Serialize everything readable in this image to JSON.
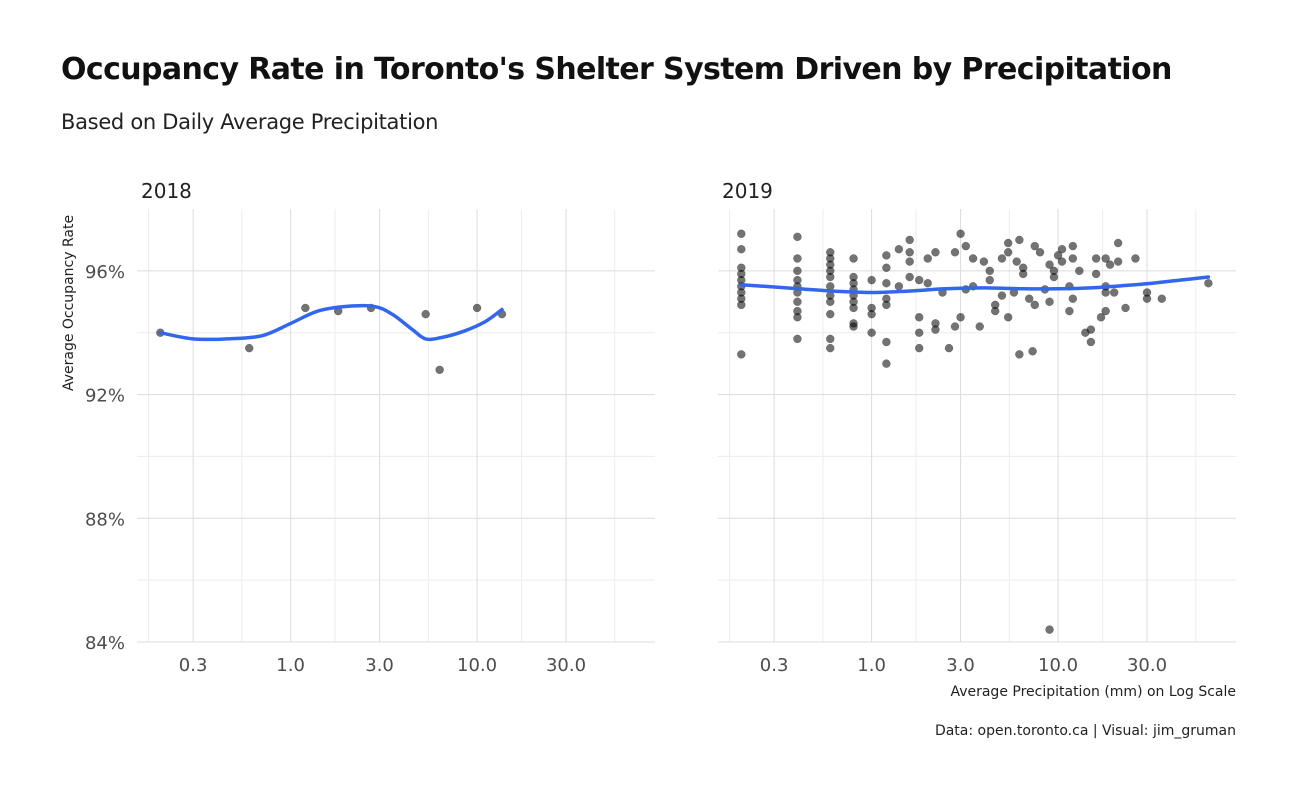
{
  "title": "Occupancy Rate in Toronto's Shelter System Driven by Precipitation",
  "subtitle": "Based on Daily Average Precipitation",
  "caption": "Data: open.toronto.ca | Visual: jim_gruman",
  "colors": {
    "points": "#000000",
    "smooth": "#3366ee",
    "grid": "#dcdcdc"
  },
  "chart_data": [
    {
      "type": "scatter",
      "facet": "2018",
      "xlabel": "",
      "ylabel": "Average Occupancy Rate",
      "x_scale": "log10",
      "xlim": [
        0.15,
        90
      ],
      "ylim": [
        84,
        98
      ],
      "x_ticks": [
        0.3,
        1.0,
        3.0,
        10.0,
        30.0
      ],
      "x_tick_labels": [
        "0.3",
        "1.0",
        "3.0",
        "10.0",
        "30.0"
      ],
      "y_ticks": [
        84,
        88,
        92,
        96
      ],
      "y_tick_labels": [
        "84%",
        "88%",
        "92%",
        "96%"
      ],
      "grid": true,
      "points": [
        [
          0.2,
          94.0
        ],
        [
          0.6,
          93.5
        ],
        [
          1.2,
          94.8
        ],
        [
          1.8,
          94.7
        ],
        [
          2.7,
          94.8
        ],
        [
          5.3,
          94.6
        ],
        [
          6.3,
          92.8
        ],
        [
          10.0,
          94.8
        ],
        [
          13.6,
          94.6
        ]
      ],
      "smooth": [
        [
          0.2,
          94.0
        ],
        [
          0.3,
          93.8
        ],
        [
          0.45,
          93.8
        ],
        [
          0.7,
          93.9
        ],
        [
          1.0,
          94.3
        ],
        [
          1.4,
          94.7
        ],
        [
          2.0,
          94.85
        ],
        [
          2.8,
          94.85
        ],
        [
          3.5,
          94.6
        ],
        [
          4.5,
          94.1
        ],
        [
          5.3,
          93.8
        ],
        [
          6.5,
          93.85
        ],
        [
          8.5,
          94.05
        ],
        [
          11.0,
          94.35
        ],
        [
          13.6,
          94.75
        ]
      ]
    },
    {
      "type": "scatter",
      "facet": "2019",
      "xlabel": "Average Precipitation (mm) on Log Scale",
      "ylabel": "",
      "x_scale": "log10",
      "xlim": [
        0.15,
        90
      ],
      "ylim": [
        84,
        98
      ],
      "x_ticks": [
        0.3,
        1.0,
        3.0,
        10.0,
        30.0
      ],
      "x_tick_labels": [
        "0.3",
        "1.0",
        "3.0",
        "10.0",
        "30.0"
      ],
      "y_ticks": [
        84,
        88,
        92,
        96
      ],
      "y_tick_labels": [
        "84%",
        "88%",
        "92%",
        "96%"
      ],
      "grid": true,
      "points": [
        [
          0.2,
          97.2
        ],
        [
          0.2,
          96.7
        ],
        [
          0.2,
          96.1
        ],
        [
          0.2,
          95.9
        ],
        [
          0.2,
          95.7
        ],
        [
          0.2,
          95.5
        ],
        [
          0.2,
          95.3
        ],
        [
          0.2,
          95.1
        ],
        [
          0.2,
          94.9
        ],
        [
          0.2,
          93.3
        ],
        [
          0.4,
          97.1
        ],
        [
          0.4,
          96.4
        ],
        [
          0.4,
          96.0
        ],
        [
          0.4,
          95.7
        ],
        [
          0.4,
          95.5
        ],
        [
          0.4,
          95.3
        ],
        [
          0.4,
          95.0
        ],
        [
          0.4,
          94.7
        ],
        [
          0.4,
          94.5
        ],
        [
          0.4,
          93.8
        ],
        [
          0.6,
          96.6
        ],
        [
          0.6,
          96.4
        ],
        [
          0.6,
          96.2
        ],
        [
          0.6,
          96.0
        ],
        [
          0.6,
          95.8
        ],
        [
          0.6,
          95.5
        ],
        [
          0.6,
          95.2
        ],
        [
          0.6,
          95.0
        ],
        [
          0.6,
          94.6
        ],
        [
          0.6,
          93.8
        ],
        [
          0.6,
          93.5
        ],
        [
          0.8,
          96.4
        ],
        [
          0.8,
          95.8
        ],
        [
          0.8,
          95.6
        ],
        [
          0.8,
          95.4
        ],
        [
          0.8,
          95.2
        ],
        [
          0.8,
          95.0
        ],
        [
          0.8,
          94.8
        ],
        [
          0.8,
          94.3
        ],
        [
          0.8,
          94.2
        ],
        [
          1.0,
          95.7
        ],
        [
          1.0,
          94.8
        ],
        [
          1.0,
          94.6
        ],
        [
          1.0,
          94.0
        ],
        [
          1.2,
          96.5
        ],
        [
          1.2,
          96.1
        ],
        [
          1.2,
          95.6
        ],
        [
          1.2,
          95.1
        ],
        [
          1.2,
          94.9
        ],
        [
          1.2,
          93.7
        ],
        [
          1.2,
          93.0
        ],
        [
          1.4,
          96.7
        ],
        [
          1.4,
          95.5
        ],
        [
          1.6,
          97.0
        ],
        [
          1.6,
          96.6
        ],
        [
          1.6,
          96.3
        ],
        [
          1.6,
          95.8
        ],
        [
          1.8,
          95.7
        ],
        [
          1.8,
          94.5
        ],
        [
          1.8,
          94.0
        ],
        [
          1.8,
          93.5
        ],
        [
          2.0,
          96.4
        ],
        [
          2.0,
          95.6
        ],
        [
          2.2,
          96.6
        ],
        [
          2.2,
          94.3
        ],
        [
          2.2,
          94.1
        ],
        [
          2.4,
          95.3
        ],
        [
          2.6,
          93.5
        ],
        [
          2.8,
          96.6
        ],
        [
          2.8,
          94.2
        ],
        [
          3.0,
          97.2
        ],
        [
          3.0,
          94.5
        ],
        [
          3.2,
          96.8
        ],
        [
          3.2,
          95.4
        ],
        [
          3.5,
          96.4
        ],
        [
          3.5,
          95.5
        ],
        [
          3.8,
          94.2
        ],
        [
          4.0,
          96.3
        ],
        [
          4.3,
          96.0
        ],
        [
          4.3,
          95.7
        ],
        [
          4.6,
          94.9
        ],
        [
          4.6,
          94.7
        ],
        [
          5.0,
          96.4
        ],
        [
          5.0,
          95.2
        ],
        [
          5.4,
          96.9
        ],
        [
          5.4,
          96.6
        ],
        [
          5.4,
          94.5
        ],
        [
          5.8,
          95.3
        ],
        [
          6.0,
          96.3
        ],
        [
          6.2,
          97.0
        ],
        [
          6.2,
          93.3
        ],
        [
          6.5,
          96.1
        ],
        [
          6.5,
          95.9
        ],
        [
          7.0,
          95.1
        ],
        [
          7.3,
          93.4
        ],
        [
          7.5,
          96.8
        ],
        [
          7.5,
          94.9
        ],
        [
          8.0,
          96.6
        ],
        [
          8.5,
          95.4
        ],
        [
          9.0,
          96.2
        ],
        [
          9.0,
          95.0
        ],
        [
          9.0,
          84.4
        ],
        [
          9.5,
          96.0
        ],
        [
          9.5,
          95.8
        ],
        [
          10.0,
          96.5
        ],
        [
          10.5,
          96.7
        ],
        [
          10.5,
          96.3
        ],
        [
          11.5,
          95.5
        ],
        [
          11.5,
          94.7
        ],
        [
          12.0,
          96.8
        ],
        [
          12.0,
          96.4
        ],
        [
          12.0,
          95.1
        ],
        [
          13.0,
          96.0
        ],
        [
          14.0,
          94.0
        ],
        [
          15.0,
          93.7
        ],
        [
          15.0,
          94.1
        ],
        [
          16.0,
          96.4
        ],
        [
          16.0,
          95.9
        ],
        [
          17.0,
          94.5
        ],
        [
          18.0,
          96.4
        ],
        [
          18.0,
          94.7
        ],
        [
          18.0,
          95.5
        ],
        [
          18.0,
          95.3
        ],
        [
          19.0,
          96.2
        ],
        [
          20.0,
          95.3
        ],
        [
          21.0,
          96.9
        ],
        [
          21.0,
          96.3
        ],
        [
          23.0,
          94.8
        ],
        [
          26.0,
          96.4
        ],
        [
          30.0,
          95.3
        ],
        [
          30.0,
          95.1
        ],
        [
          36.0,
          95.1
        ],
        [
          64.0,
          95.6
        ]
      ],
      "smooth": [
        [
          0.2,
          95.55
        ],
        [
          0.35,
          95.45
        ],
        [
          0.6,
          95.35
        ],
        [
          1.0,
          95.3
        ],
        [
          1.6,
          95.35
        ],
        [
          2.5,
          95.42
        ],
        [
          4.0,
          95.45
        ],
        [
          6.5,
          95.42
        ],
        [
          10.0,
          95.42
        ],
        [
          15.0,
          95.45
        ],
        [
          22.0,
          95.52
        ],
        [
          32.0,
          95.6
        ],
        [
          45.0,
          95.7
        ],
        [
          64.0,
          95.8
        ]
      ]
    }
  ]
}
